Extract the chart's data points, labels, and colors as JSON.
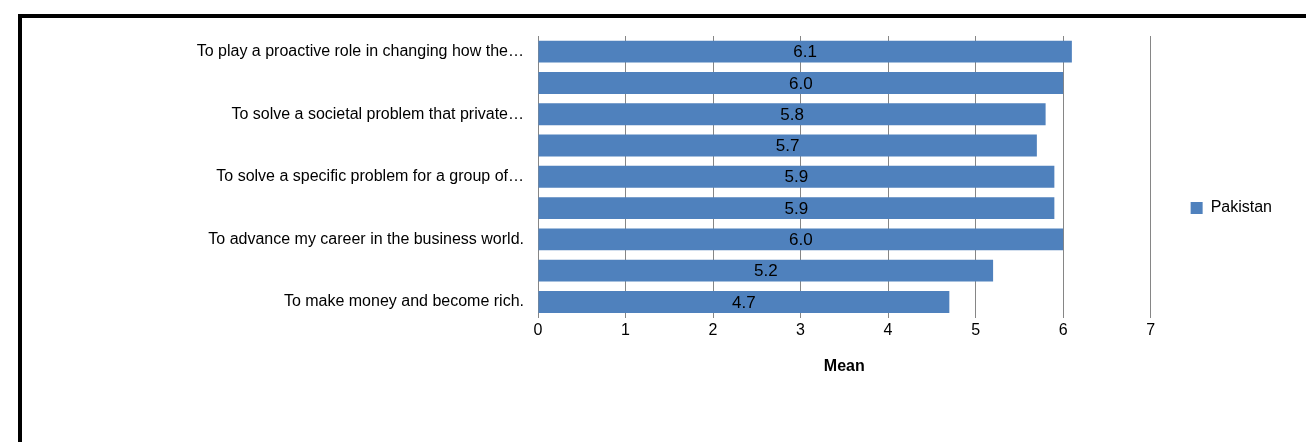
{
  "chart_data": {
    "type": "bar",
    "orientation": "horizontal",
    "xlabel": "Mean",
    "categories": [
      "To play a proactive role in changing how the…",
      null,
      "To solve a societal problem that private…",
      null,
      "To solve a specific problem for a group of…",
      null,
      "To advance my career in the business world.",
      null,
      "To make money and become rich."
    ],
    "series": [
      {
        "name": "Pakistan",
        "color": "#4f81bd",
        "values": [
          6.1,
          6.0,
          5.8,
          5.7,
          5.9,
          5.9,
          6.0,
          5.2,
          4.7
        ],
        "value_labels": [
          "6.1",
          "6.0",
          "5.8",
          "5.7",
          "5.9",
          "5.9",
          "6.0",
          "5.2",
          "4.7"
        ]
      }
    ],
    "xlim": [
      0,
      7
    ],
    "xticks": [
      0,
      1,
      2,
      3,
      4,
      5,
      6,
      7
    ],
    "grid": "x",
    "legend": "right"
  }
}
